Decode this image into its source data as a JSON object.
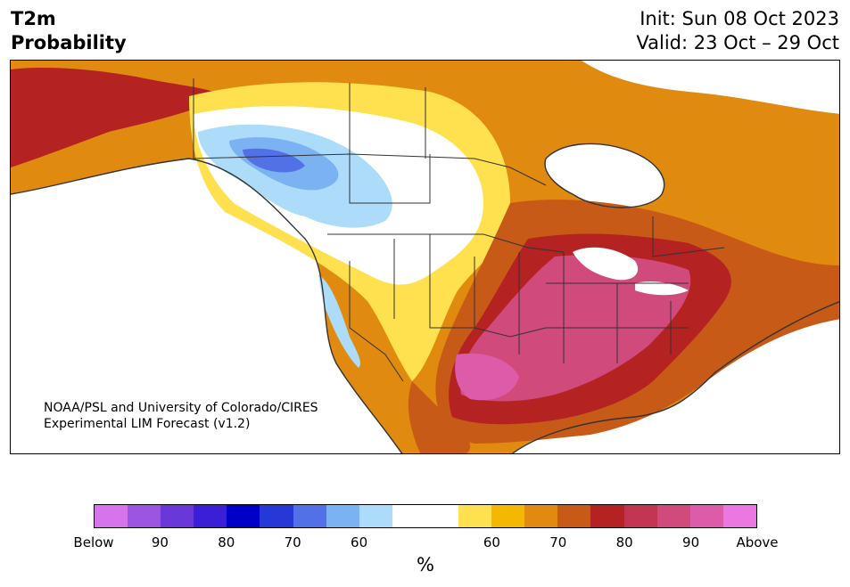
{
  "header": {
    "variable": "T2m",
    "product": "Probability",
    "init": "Init: Sun 08 Oct 2023",
    "valid": "Valid: 23 Oct – 29 Oct"
  },
  "map": {
    "credit_line1": "NOAA/PSL and University of Colorado/CIRES",
    "credit_line2": "Experimental LIM Forecast (v1.2)"
  },
  "colorbar": {
    "colors": [
      "#d674ec",
      "#9c55e0",
      "#6a38d8",
      "#3a1fd6",
      "#0000c8",
      "#2638d6",
      "#5271e6",
      "#7ab2f2",
      "#acdcfa",
      "#ffffff",
      "#ffffff",
      "#ffe14f",
      "#f5b800",
      "#e08a10",
      "#c85a18",
      "#b42222",
      "#c23654",
      "#d04a7c",
      "#dc5caa",
      "#ea78e0"
    ],
    "tick_labels": [
      "Below",
      "90",
      "80",
      "70",
      "60",
      "60",
      "70",
      "80",
      "90",
      "Above"
    ],
    "unit": "%"
  }
}
